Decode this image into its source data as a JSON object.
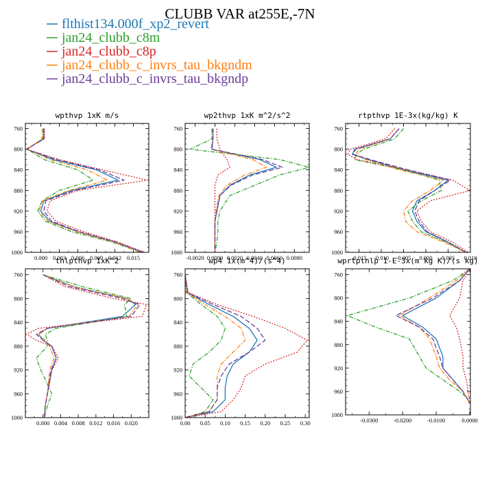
{
  "figure": {
    "title": "CLUBB VAR at255E,-7N",
    "legend": [
      {
        "name": "flthist134.000f_xp2_revert",
        "color": "#1f77b4",
        "dash": "solid"
      },
      {
        "name": "jan24_clubb_c8m",
        "color": "#2ca02c",
        "dash": "dashdot"
      },
      {
        "name": "jan24_clubb_c8p",
        "color": "#d62728",
        "dash": "dotted"
      },
      {
        "name": "jan24_clubb_c_invrs_tau_bkgndm",
        "color": "#ff7f0e",
        "dash": "dashdot"
      },
      {
        "name": "jan24_clubb_c_invrs_tau_bkgndp",
        "color": "#6a3d9a",
        "dash": "longdash"
      }
    ]
  },
  "chart_data": [
    {
      "type": "line",
      "title": "wpthvp  1xK m/s",
      "xlim": [
        -0.0025,
        0.0175
      ],
      "ylim": [
        750,
        1000
      ],
      "y_reversed": true,
      "xticks": [
        0.0,
        0.003,
        0.006,
        0.009,
        0.012,
        0.015
      ],
      "xtick_labels": [
        "0.000",
        "0.003",
        "0.006",
        "0.009",
        "0.012",
        "0.015"
      ],
      "yticks": [
        760,
        800,
        840,
        880,
        920,
        960,
        1000
      ],
      "y": [
        760,
        780,
        800,
        820,
        840,
        860,
        880,
        900,
        920,
        940,
        960,
        980,
        1000
      ],
      "series": [
        {
          "values": [
            0.0005,
            0.0004,
            -0.0023,
            0.002,
            0.009,
            0.0125,
            0.005,
            0.0005,
            0.0,
            0.0015,
            0.006,
            0.012,
            0.0165
          ]
        },
        {
          "values": [
            0.0003,
            0.0002,
            -0.0022,
            0.0005,
            0.006,
            0.0085,
            0.003,
            0.0002,
            -0.0005,
            0.0008,
            0.005,
            0.0115,
            0.0162
          ]
        },
        {
          "values": [
            0.0006,
            0.0006,
            -0.0024,
            0.003,
            0.01,
            0.0173,
            0.006,
            0.0015,
            0.001,
            0.0025,
            0.007,
            0.0125,
            0.0168
          ]
        },
        {
          "values": [
            0.0004,
            0.0003,
            -0.0022,
            0.0015,
            0.0075,
            0.0108,
            0.0045,
            0.0003,
            -0.0003,
            0.0012,
            0.0058,
            0.0118,
            0.0163
          ]
        },
        {
          "values": [
            0.0005,
            0.0005,
            -0.0023,
            0.0025,
            0.0095,
            0.0135,
            0.0055,
            0.0008,
            0.0005,
            0.0018,
            0.0063,
            0.0122,
            0.0166
          ]
        }
      ]
    },
    {
      "type": "line",
      "title": "wp2thvp  1xK m^2/s^2",
      "xlim": [
        -0.003,
        0.0095
      ],
      "ylim": [
        750,
        1000
      ],
      "y_reversed": true,
      "xticks": [
        -0.002,
        0.0,
        0.002,
        0.004,
        0.006,
        0.008
      ],
      "xtick_labels": [
        "-0.0020",
        "0.0000",
        "0.0020",
        "0.0040",
        "0.0060",
        "0.0080"
      ],
      "yticks": [
        760,
        800,
        840,
        880,
        920,
        960,
        1000
      ],
      "y": [
        760,
        780,
        800,
        820,
        835,
        850,
        870,
        890,
        920,
        940,
        960,
        980,
        1000
      ],
      "series": [
        {
          "values": [
            -0.0002,
            -0.0002,
            -0.0003,
            0.0045,
            0.0062,
            0.0035,
            0.0015,
            0.0005,
            0.0002,
            0.0,
            0.0,
            0.0,
            0.0
          ]
        },
        {
          "values": [
            -0.0003,
            -0.0003,
            -0.0025,
            0.0065,
            0.0095,
            0.0065,
            0.004,
            0.0015,
            0.0005,
            0.0003,
            0.0003,
            0.0002,
            0.0
          ]
        },
        {
          "values": [
            0.0002,
            0.0002,
            0.0005,
            0.0012,
            0.0015,
            0.0003,
            0.0,
            0.0,
            0.0,
            0.0,
            0.0,
            0.0,
            0.0
          ]
        },
        {
          "values": [
            -0.0002,
            -0.0002,
            -0.0004,
            0.0038,
            0.0052,
            0.003,
            0.0012,
            0.0004,
            0.0001,
            0.0,
            0.0,
            0.0,
            0.0
          ]
        },
        {
          "values": [
            -0.0002,
            -0.0002,
            -0.0003,
            0.0048,
            0.0068,
            0.0038,
            0.0016,
            0.0005,
            0.0002,
            0.0,
            0.0,
            0.0,
            0.0
          ]
        }
      ]
    },
    {
      "type": "line",
      "title": "rtpthvp  1E-3x(kg/kg) K",
      "xlim": [
        -0.018,
        0.01
      ],
      "ylim": [
        750,
        1000
      ],
      "y_reversed": true,
      "xticks": [
        -0.015,
        -0.01,
        -0.005,
        0.0,
        0.005,
        0.01
      ],
      "xtick_labels": [
        "-0.015",
        "-0.010",
        "-0.005",
        "0.000",
        "0.005",
        "0.010"
      ],
      "yticks": [
        760,
        800,
        840,
        880,
        920,
        960,
        1000
      ],
      "y": [
        760,
        780,
        800,
        810,
        820,
        840,
        860,
        880,
        900,
        920,
        940,
        960,
        980,
        1000
      ],
      "series": [
        {
          "values": [
            -0.006,
            -0.008,
            -0.016,
            -0.0165,
            -0.013,
            -0.005,
            0.005,
            0.002,
            -0.002,
            -0.003,
            -0.002,
            0.0,
            0.005,
            0.009
          ]
        },
        {
          "values": [
            -0.005,
            -0.007,
            -0.014,
            -0.0155,
            -0.016,
            -0.005,
            0.003,
            0.0035,
            -0.001,
            -0.004,
            -0.003,
            -0.001,
            0.0045,
            0.009
          ]
        },
        {
          "values": [
            -0.007,
            -0.009,
            -0.017,
            -0.0175,
            -0.0155,
            -0.004,
            0.006,
            0.01,
            0.001,
            -0.002,
            -0.001,
            0.001,
            0.006,
            0.0095
          ]
        },
        {
          "values": [
            -0.006,
            -0.008,
            -0.015,
            -0.0158,
            -0.0135,
            -0.006,
            0.004,
            0.001,
            -0.003,
            -0.005,
            -0.0045,
            -0.002,
            0.004,
            0.009
          ]
        },
        {
          "values": [
            -0.006,
            -0.008,
            -0.0158,
            -0.0163,
            -0.0125,
            -0.004,
            0.0055,
            0.002,
            -0.0015,
            -0.0025,
            -0.0015,
            0.0003,
            0.005,
            0.009
          ]
        }
      ]
    },
    {
      "type": "line",
      "title": "thlpthvp  1xK^2",
      "xlim": [
        -0.004,
        0.024
      ],
      "ylim": [
        750,
        1000
      ],
      "y_reversed": true,
      "xticks": [
        0.0,
        0.004,
        0.008,
        0.012,
        0.016,
        0.02
      ],
      "xtick_labels": [
        "0.000",
        "0.004",
        "0.008",
        "0.012",
        "0.016",
        "0.020"
      ],
      "yticks": [
        760,
        800,
        840,
        880,
        920,
        960,
        1000
      ],
      "y": [
        760,
        780,
        800,
        810,
        830,
        850,
        860,
        870,
        880,
        900,
        920,
        960,
        980,
        1000
      ],
      "series": [
        {
          "values": [
            0.0,
            0.007,
            0.019,
            0.021,
            0.018,
            0.001,
            -0.001,
            0.0,
            0.002,
            0.003,
            0.002,
            0.001,
            0.0005,
            0.0003
          ]
        },
        {
          "values": [
            0.0,
            0.009,
            0.02,
            0.0185,
            0.019,
            0.003,
            0.0005,
            0.001,
            0.001,
            -0.0015,
            -0.0005,
            0.002,
            0.001,
            0.0003
          ]
        },
        {
          "values": [
            0.0,
            0.005,
            0.016,
            0.0235,
            0.0225,
            -0.001,
            -0.0038,
            -0.0015,
            0.002,
            0.0035,
            0.002,
            0.001,
            0.0005,
            0.0003
          ]
        },
        {
          "values": [
            0.0,
            0.007,
            0.019,
            0.0215,
            0.0195,
            0.001,
            -0.001,
            0.0005,
            0.0015,
            0.0025,
            0.0015,
            0.001,
            0.0005,
            0.0003
          ]
        },
        {
          "values": [
            0.0,
            0.006,
            0.018,
            0.022,
            0.02,
            0.001,
            -0.0015,
            0.0,
            0.002,
            0.003,
            0.0018,
            0.001,
            0.0005,
            0.0003
          ]
        }
      ]
    },
    {
      "type": "line",
      "title": "wp4  1x(m^4)/(s^4)",
      "xlim": [
        0.0,
        0.31
      ],
      "ylim": [
        750,
        1000
      ],
      "y_reversed": true,
      "xticks": [
        0.0,
        0.05,
        0.1,
        0.15,
        0.2,
        0.25,
        0.3
      ],
      "xtick_labels": [
        "0.00",
        "0.05",
        "0.10",
        "0.15",
        "0.20",
        "0.25",
        "0.30"
      ],
      "yticks": [
        760,
        800,
        840,
        880,
        920,
        960,
        1000
      ],
      "y": [
        760,
        790,
        810,
        830,
        850,
        870,
        890,
        910,
        930,
        950,
        970,
        990,
        1000
      ],
      "series": [
        {
          "values": [
            0.0,
            0.005,
            0.06,
            0.12,
            0.16,
            0.18,
            0.16,
            0.12,
            0.105,
            0.1,
            0.1,
            0.07,
            0.0
          ]
        },
        {
          "values": [
            0.0,
            0.003,
            0.04,
            0.08,
            0.1,
            0.09,
            0.06,
            0.02,
            0.01,
            0.04,
            0.07,
            0.05,
            0.0
          ]
        },
        {
          "values": [
            0.0,
            0.008,
            0.08,
            0.17,
            0.25,
            0.305,
            0.28,
            0.2,
            0.15,
            0.14,
            0.12,
            0.09,
            0.0
          ]
        },
        {
          "values": [
            0.0,
            0.004,
            0.05,
            0.1,
            0.14,
            0.15,
            0.12,
            0.09,
            0.08,
            0.08,
            0.08,
            0.06,
            0.0
          ]
        },
        {
          "values": [
            0.0,
            0.006,
            0.07,
            0.14,
            0.18,
            0.2,
            0.16,
            0.11,
            0.09,
            0.08,
            0.08,
            0.06,
            0.0
          ]
        }
      ]
    },
    {
      "type": "line",
      "title": "wprtpthlp  1-E-3x(m kg K)/(s kg)",
      "xlim": [
        -0.037,
        0.0002
      ],
      "ylim": [
        750,
        1000
      ],
      "y_reversed": true,
      "xticks": [
        -0.03,
        -0.02,
        -0.01,
        0.0
      ],
      "xtick_labels": [
        "-0.0300",
        "-0.0200",
        "-0.0100",
        "0.0000"
      ],
      "yticks": [
        760,
        800,
        840,
        880,
        920,
        960,
        1000
      ],
      "y": [
        750,
        770,
        800,
        830,
        850,
        870,
        900,
        920,
        940,
        960,
        970,
        980
      ],
      "series": [
        {
          "values": [
            0.0,
            -0.003,
            -0.01,
            -0.02,
            -0.014,
            -0.01,
            -0.008,
            -0.008,
            -0.005,
            -0.002,
            -0.001,
            0.0
          ]
        },
        {
          "values": [
            0.0,
            -0.005,
            -0.018,
            -0.0365,
            -0.028,
            -0.018,
            -0.015,
            -0.013,
            -0.008,
            -0.003,
            -0.001,
            0.0
          ]
        },
        {
          "values": [
            0.0,
            -0.002,
            -0.003,
            -0.006,
            -0.004,
            -0.003,
            -0.002,
            -0.002,
            -0.001,
            -0.0005,
            -0.0003,
            0.0
          ]
        },
        {
          "values": [
            0.0,
            -0.004,
            -0.012,
            -0.021,
            -0.015,
            -0.012,
            -0.01,
            -0.009,
            -0.006,
            -0.002,
            -0.001,
            0.0
          ]
        },
        {
          "values": [
            0.0,
            -0.003,
            -0.011,
            -0.022,
            -0.015,
            -0.011,
            -0.009,
            -0.008,
            -0.005,
            -0.002,
            -0.001,
            0.0
          ]
        }
      ]
    }
  ]
}
